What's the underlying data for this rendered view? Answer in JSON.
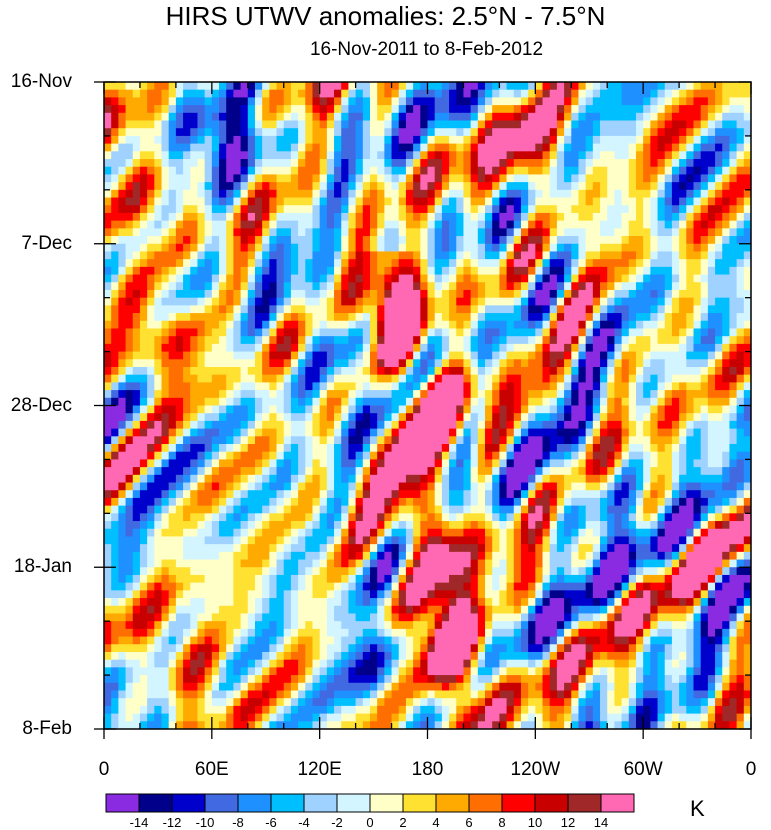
{
  "chart_data": {
    "type": "heatmap",
    "title": "HIRS UTWV anomalies: 2.5°N - 7.5°N",
    "subtitle": "16-Nov-2011 to 8-Feb-2012",
    "x_ticks": [
      "0",
      "60E",
      "120E",
      "180",
      "120W",
      "60W",
      "0"
    ],
    "y_ticks": [
      "16-Nov",
      "7-Dec",
      "28-Dec",
      "18-Jan",
      "8-Feb"
    ],
    "xlim": [
      0,
      360
    ],
    "ylim_days": [
      0,
      84
    ],
    "colorbar": {
      "levels": [
        "-14",
        "-12",
        "-10",
        "-8",
        "-6",
        "-4",
        "-2",
        "0",
        "2",
        "4",
        "6",
        "8",
        "10",
        "12",
        "14"
      ],
      "colors": [
        "#8a2be2",
        "#00008b",
        "#0000cd",
        "#4169e1",
        "#1e90ff",
        "#00bfff",
        "#a0d2ff",
        "#d2f5ff",
        "#ffffc8",
        "#ffe132",
        "#ffaa00",
        "#ff6e00",
        "#ff0000",
        "#c80000",
        "#a02828",
        "#ff69b4"
      ],
      "units": "K"
    },
    "features": [
      {
        "lon": 185,
        "day": 42,
        "value": 11
      },
      {
        "lon": 160,
        "day": 30,
        "value": 14
      },
      {
        "lon": 195,
        "day": 74,
        "value": 16
      },
      {
        "lon": 175,
        "day": 58,
        "value": 12
      },
      {
        "lon": 30,
        "day": 33,
        "value": 10
      },
      {
        "lon": 50,
        "day": 77,
        "value": 9
      },
      {
        "lon": 240,
        "day": 10,
        "value": 10
      },
      {
        "lon": 10,
        "day": 12,
        "value": 10
      },
      {
        "lon": 65,
        "day": 6,
        "value": -12
      },
      {
        "lon": 130,
        "day": 33,
        "value": -8
      },
      {
        "lon": 270,
        "day": 55,
        "value": -9
      },
      {
        "lon": 150,
        "day": 75,
        "value": -8
      }
    ]
  }
}
